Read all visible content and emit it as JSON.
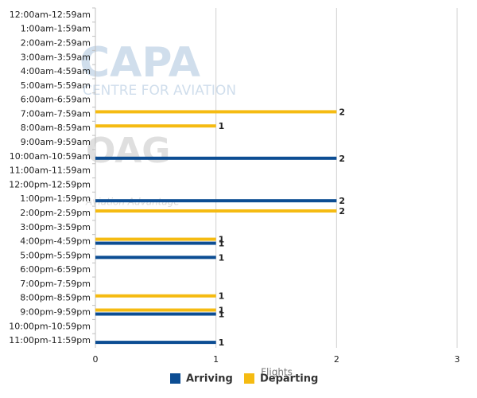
{
  "chart_data": {
    "type": "hbar",
    "categories": [
      "12:00am-12:59am",
      "1:00am-1:59am",
      "2:00am-2:59am",
      "3:00am-3:59am",
      "4:00am-4:59am",
      "5:00am-5:59am",
      "6:00am-6:59am",
      "7:00am-7:59am",
      "8:00am-8:59am",
      "9:00am-9:59am",
      "10:00am-10:59am",
      "11:00am-11:59am",
      "12:00pm-12:59pm",
      "1:00pm-1:59pm",
      "2:00pm-2:59pm",
      "3:00pm-3:59pm",
      "4:00pm-4:59pm",
      "5:00pm-5:59pm",
      "6:00pm-6:59pm",
      "7:00pm-7:59pm",
      "8:00pm-8:59pm",
      "9:00pm-9:59pm",
      "10:00pm-10:59pm",
      "11:00pm-11:59pm"
    ],
    "series": [
      {
        "name": "Arriving",
        "color": "#0c4d93",
        "values": [
          0,
          0,
          0,
          0,
          0,
          0,
          0,
          0,
          0,
          0,
          2,
          0,
          0,
          2,
          0,
          0,
          1,
          1,
          0,
          0,
          0,
          1,
          0,
          1
        ]
      },
      {
        "name": "Departing",
        "color": "#f5bb12",
        "values": [
          0,
          0,
          0,
          0,
          0,
          0,
          0,
          2,
          1,
          0,
          0,
          0,
          0,
          0,
          2,
          0,
          1,
          0,
          0,
          0,
          1,
          1,
          0,
          0
        ]
      }
    ],
    "xlim": [
      0,
      3
    ],
    "xticks": [
      0,
      1,
      2,
      3
    ],
    "x_label": "Flights",
    "grid": true,
    "legend": "bottom",
    "watermark": [
      "CAPA",
      "CENTRE FOR AVIATION",
      "OAG",
      "Aviation Advantage"
    ]
  }
}
